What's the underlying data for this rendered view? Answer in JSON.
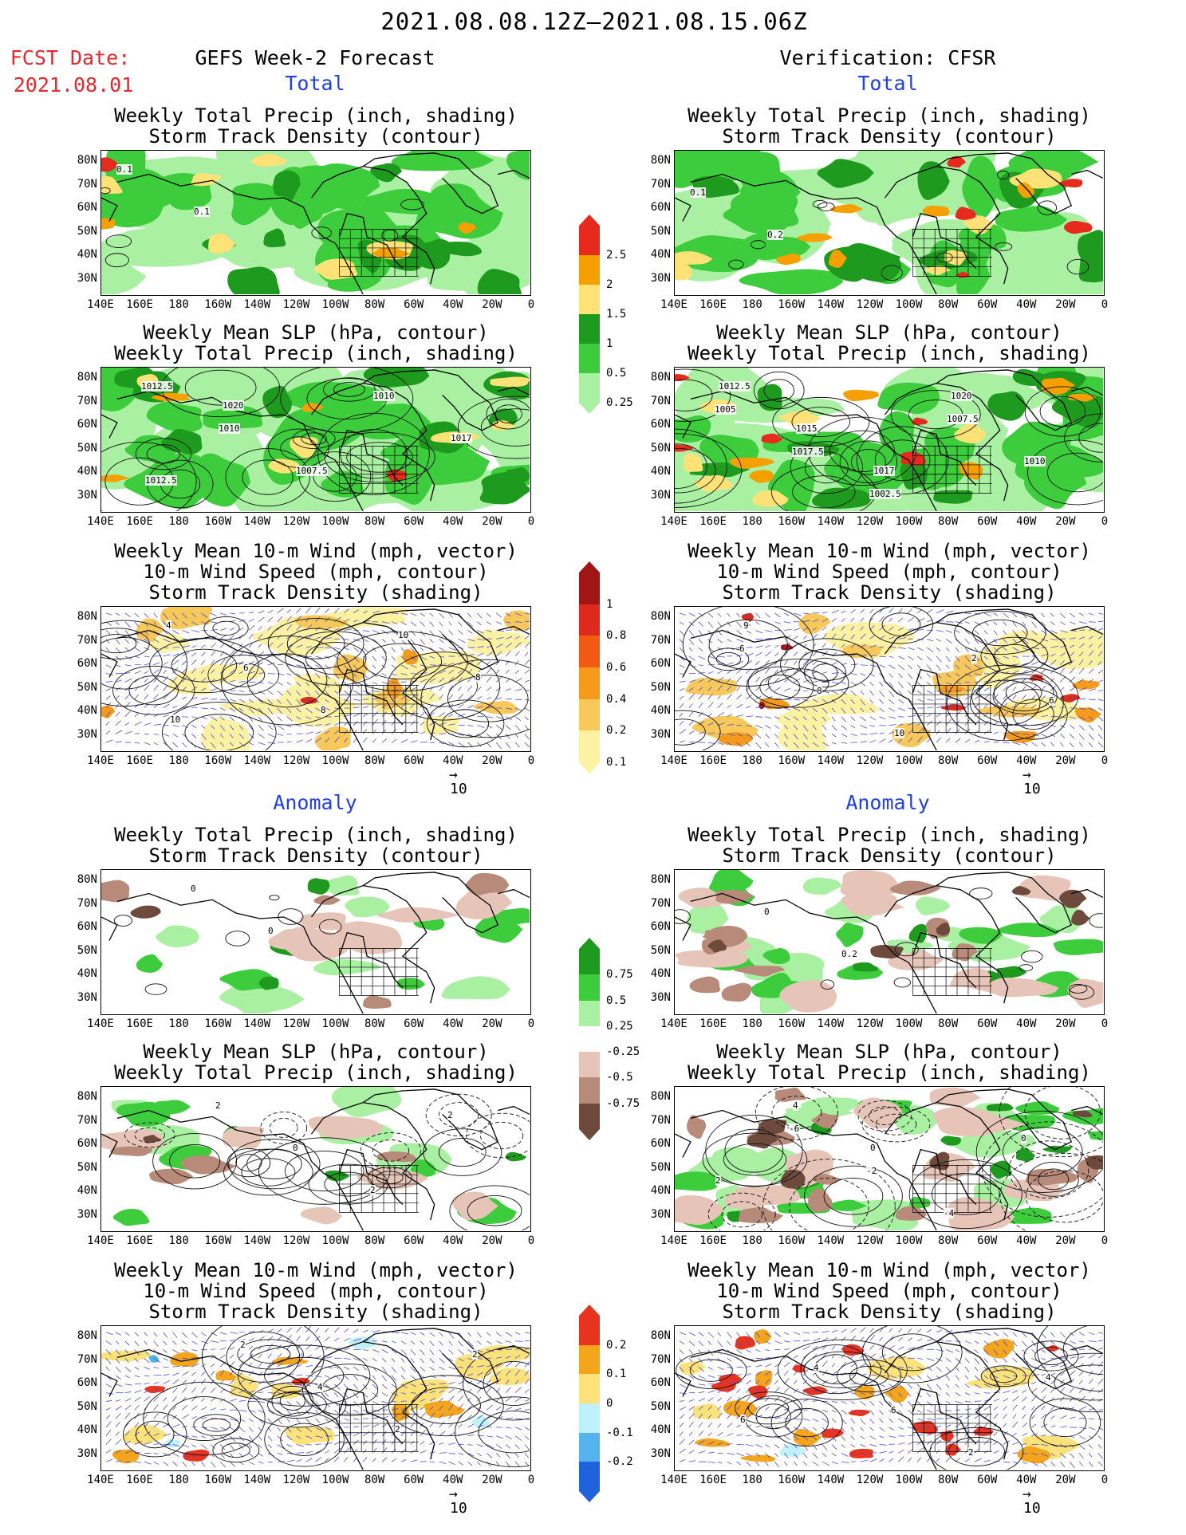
{
  "header": {
    "date_range": "2021.08.08.12Z–2021.08.15.06Z",
    "fcst_date_label": "FCST Date:",
    "fcst_date_value": "2021.08.01",
    "left_title": "GEFS Week-2 Forecast",
    "right_title": "Verification: CFSR"
  },
  "sections": {
    "total": "Total",
    "anomaly": "Anomaly"
  },
  "panel_titles": {
    "precip_storm": [
      "Weekly Total Precip (inch, shading)",
      "Storm Track Density (contour)"
    ],
    "slp_precip": [
      "Weekly Mean SLP (hPa, contour)",
      "Weekly Total Precip (inch, shading)"
    ],
    "wind_storm": [
      "Weekly Mean 10-m Wind (mph, vector)",
      "10-m Wind Speed (mph, contour)",
      "Storm Track Density (shading)"
    ]
  },
  "axes": {
    "x_ticks": [
      "140E",
      "160E",
      "180",
      "160W",
      "140W",
      "120W",
      "100W",
      "80W",
      "60W",
      "40W",
      "20W",
      "0"
    ],
    "y_ticks": [
      "80N",
      "70N",
      "60N",
      "50N",
      "40N",
      "30N"
    ]
  },
  "vector_scale": "10",
  "colorbars": {
    "total_precip": {
      "labels": [
        "2.5",
        "2",
        "1.5",
        "1",
        "0.5",
        "0.25"
      ],
      "colors": [
        "#e62a1e",
        "#f59f00",
        "#ffe277",
        "#1e9b1e",
        "#3ccc3c",
        "#a9f0a2"
      ]
    },
    "total_storm": {
      "labels": [
        "1",
        "0.8",
        "0.6",
        "0.4",
        "0.2",
        "0.1"
      ],
      "colors": [
        "#a11514",
        "#dd2a1c",
        "#f25a14",
        "#f59a1a",
        "#f8c95a",
        "#fdf1a2"
      ]
    },
    "anom_precip": {
      "labels": [
        "0.75",
        "0.5",
        "0.25",
        "-0.25",
        "-0.5",
        "-0.75"
      ],
      "colors": [
        "#1e9b1e",
        "#3ccc3c",
        "#a9f0a2",
        "#ffffff",
        "#e6c4b8",
        "#b88a7a",
        "#6e4a3c"
      ]
    },
    "anom_storm": {
      "labels": [
        "0.2",
        "0.1",
        "0",
        "-0.1",
        "-0.2"
      ],
      "colors": [
        "#e8341e",
        "#f5a51c",
        "#fde27a",
        "#bff1fb",
        "#55b4f0",
        "#1e63dc"
      ]
    }
  },
  "contour_labels": {
    "fcst_total_precip": [
      "0.1",
      "0.1"
    ],
    "fcst_total_slp": [
      "1012.5",
      "1010",
      "1007.5",
      "1010",
      "1017",
      "1012.5",
      "1020"
    ],
    "fcst_total_wind": [
      "4",
      "6",
      "8",
      "10",
      "8",
      "10"
    ],
    "cfsr_total_precip": [
      "0.1",
      "0.2"
    ],
    "cfsr_total_slp": [
      "1005",
      "1017.5",
      "1002.5",
      "1007.5",
      "1010",
      "1012.5",
      "1015",
      "1017",
      "1020"
    ],
    "cfsr_total_wind": [
      "6",
      "8",
      "10",
      "2",
      "6",
      "9"
    ],
    "fcst_anom_precip": [
      "0",
      "0"
    ],
    "fcst_anom_slp": [
      "2",
      "0",
      "2",
      "2"
    ],
    "fcst_anom_wind": [
      "2",
      "4",
      "2",
      "2"
    ],
    "cfsr_anom_precip": [
      "0",
      "0.2"
    ],
    "cfsr_anom_slp": [
      "-6",
      "-2",
      "-4",
      "0",
      "2",
      "4",
      "0"
    ],
    "cfsr_anom_wind": [
      "4",
      "6",
      "2",
      "4",
      "6"
    ]
  }
}
